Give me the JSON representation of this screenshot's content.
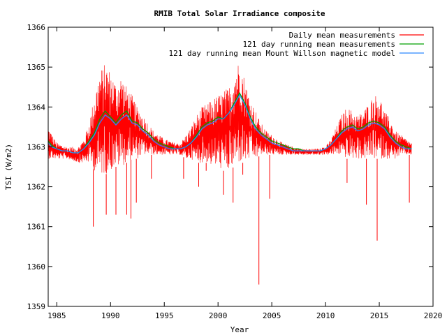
{
  "chart_data": {
    "type": "line",
    "title": "RMIB Total Solar Irradiance composite",
    "xlabel": "Year",
    "ylabel": "TSI (W/m2)",
    "xlim": [
      1984.2,
      2020
    ],
    "ylim": [
      1359,
      1366
    ],
    "x_ticks": [
      "1985",
      "1990",
      "1995",
      "2000",
      "2005",
      "2010",
      "2015",
      "2020"
    ],
    "y_ticks": [
      "1359",
      "1360",
      "1361",
      "1362",
      "1363",
      "1364",
      "1365",
      "1366"
    ],
    "grid": false,
    "legend_position": "top-right",
    "series": [
      {
        "name": "Daily mean measurements",
        "color": "#ff0000",
        "style": "noisy-envelope",
        "x": [
          1984.2,
          1985,
          1986,
          1987,
          1987.5,
          1988,
          1988.5,
          1989,
          1989.5,
          1990,
          1990.5,
          1991,
          1991.5,
          1992,
          1992.5,
          1993,
          1993.5,
          1994,
          1995,
          1996,
          1996.5,
          1997,
          1997.5,
          1998,
          1998.5,
          1999,
          1999.5,
          2000,
          2000.5,
          2001,
          2001.5,
          2002,
          2002.5,
          2003,
          2003.5,
          2004,
          2004.5,
          2005,
          2006,
          2007,
          2008,
          2009,
          2009.5,
          2010,
          2010.5,
          2011,
          2011.5,
          2012,
          2012.5,
          2013,
          2013.5,
          2014,
          2014.5,
          2015,
          2015.5,
          2016,
          2016.5,
          2017,
          2018
        ],
        "upper": [
          1363.5,
          1363.1,
          1363.0,
          1363.0,
          1363.2,
          1363.6,
          1364.3,
          1364.9,
          1365.1,
          1364.9,
          1364.6,
          1364.8,
          1364.5,
          1364.3,
          1364.0,
          1363.8,
          1363.6,
          1363.4,
          1363.2,
          1363.1,
          1363.1,
          1363.3,
          1363.5,
          1363.8,
          1364.0,
          1364.1,
          1364.2,
          1364.3,
          1364.4,
          1364.5,
          1364.9,
          1365.2,
          1364.7,
          1364.2,
          1363.9,
          1363.6,
          1363.4,
          1363.3,
          1363.1,
          1363.0,
          1362.95,
          1362.95,
          1363.0,
          1363.0,
          1363.2,
          1363.5,
          1363.8,
          1364.0,
          1363.9,
          1363.8,
          1363.9,
          1364.1,
          1364.3,
          1364.3,
          1363.9,
          1363.7,
          1363.4,
          1363.3,
          1363.1
        ],
        "lower": [
          1362.7,
          1362.7,
          1362.7,
          1362.6,
          1362.6,
          1362.6,
          1362.4,
          1362.3,
          1362.3,
          1362.4,
          1362.5,
          1362.5,
          1362.6,
          1362.7,
          1362.7,
          1362.8,
          1362.8,
          1362.8,
          1362.8,
          1362.8,
          1362.8,
          1362.7,
          1362.7,
          1362.6,
          1362.6,
          1362.6,
          1362.5,
          1362.5,
          1362.4,
          1362.4,
          1362.5,
          1362.6,
          1362.6,
          1362.7,
          1362.7,
          1362.8,
          1362.8,
          1362.8,
          1362.8,
          1362.8,
          1362.8,
          1362.8,
          1362.8,
          1362.8,
          1362.8,
          1362.8,
          1362.8,
          1362.7,
          1362.7,
          1362.7,
          1362.7,
          1362.7,
          1362.7,
          1362.7,
          1362.7,
          1362.7,
          1362.7,
          1362.8,
          1362.8
        ],
        "dips": [
          [
            1988.4,
            1361.0
          ],
          [
            1989.6,
            1361.3
          ],
          [
            1990.5,
            1361.3
          ],
          [
            1991.5,
            1361.3
          ],
          [
            1991.9,
            1361.2
          ],
          [
            1992.4,
            1361.6
          ],
          [
            1993.8,
            1362.2
          ],
          [
            1996.8,
            1362.2
          ],
          [
            1998.2,
            1362.0
          ],
          [
            1998.9,
            1362.4
          ],
          [
            2000.5,
            1361.8
          ],
          [
            2001.4,
            1361.6
          ],
          [
            2002.3,
            1362.3
          ],
          [
            2003.8,
            1359.55
          ],
          [
            2004.8,
            1361.7
          ],
          [
            2012.0,
            1362.1
          ],
          [
            2013.8,
            1361.55
          ],
          [
            2014.8,
            1360.65
          ],
          [
            2017.8,
            1361.6
          ]
        ]
      },
      {
        "name": "121 day running mean measurements",
        "color": "#00a000",
        "x": [
          1984.2,
          1984.5,
          1985,
          1985.5,
          1986,
          1986.5,
          1987,
          1987.5,
          1988,
          1988.5,
          1989,
          1989.5,
          1990,
          1990.5,
          1991,
          1991.5,
          1992,
          1992.5,
          1993,
          1993.5,
          1994,
          1994.5,
          1995,
          1995.5,
          1996,
          1996.5,
          1997,
          1997.5,
          1998,
          1998.5,
          1999,
          1999.5,
          2000,
          2000.5,
          2001,
          2001.5,
          2002,
          2002.5,
          2003,
          2003.5,
          2004,
          2004.5,
          2005,
          2005.5,
          2006,
          2006.5,
          2007,
          2007.5,
          2008,
          2008.5,
          2009,
          2009.5,
          2010,
          2010.5,
          2011,
          2011.5,
          2012,
          2012.5,
          2013,
          2013.5,
          2014,
          2014.5,
          2015,
          2015.5,
          2016,
          2016.5,
          2017,
          2017.5,
          2018
        ],
        "values": [
          1363.15,
          1363.05,
          1362.95,
          1362.9,
          1362.9,
          1362.85,
          1362.85,
          1362.95,
          1363.15,
          1363.35,
          1363.7,
          1363.9,
          1363.75,
          1363.6,
          1363.8,
          1363.9,
          1363.65,
          1363.6,
          1363.45,
          1363.35,
          1363.2,
          1363.1,
          1363.05,
          1363.0,
          1362.95,
          1362.95,
          1363.0,
          1363.1,
          1363.3,
          1363.5,
          1363.6,
          1363.65,
          1363.75,
          1363.7,
          1363.85,
          1364.1,
          1364.35,
          1364.1,
          1363.75,
          1363.5,
          1363.35,
          1363.25,
          1363.15,
          1363.1,
          1363.05,
          1363.0,
          1362.95,
          1362.95,
          1362.9,
          1362.9,
          1362.9,
          1362.9,
          1362.95,
          1363.05,
          1363.2,
          1363.4,
          1363.5,
          1363.55,
          1363.45,
          1363.5,
          1363.6,
          1363.65,
          1363.6,
          1363.5,
          1363.3,
          1363.15,
          1363.05,
          1363.0,
          1362.95
        ]
      },
      {
        "name": "121 day running mean Mount Willson magnetic model",
        "color": "#2a88ff",
        "x": [
          1984.2,
          1984.5,
          1985,
          1985.5,
          1986,
          1986.5,
          1987,
          1987.5,
          1988,
          1988.5,
          1989,
          1989.5,
          1990,
          1990.5,
          1991,
          1991.5,
          1992,
          1992.5,
          1993,
          1993.5,
          1994,
          1994.5,
          1995,
          1995.5,
          1996,
          1996.5,
          1997,
          1997.5,
          1998,
          1998.5,
          1999,
          1999.5,
          2000,
          2000.5,
          2001,
          2001.5,
          2002,
          2002.5,
          2003,
          2003.5,
          2004,
          2004.5,
          2005,
          2005.5,
          2006,
          2006.5,
          2007,
          2007.5,
          2008,
          2008.5,
          2009,
          2009.5,
          2010,
          2010.5,
          2011,
          2011.5,
          2012,
          2012.5,
          2013,
          2013.5,
          2014,
          2014.5,
          2015,
          2015.5,
          2016,
          2016.5,
          2017,
          2017.5,
          2018
        ],
        "values": [
          1363.1,
          1363.0,
          1362.95,
          1362.9,
          1362.9,
          1362.85,
          1362.85,
          1362.95,
          1363.1,
          1363.3,
          1363.6,
          1363.8,
          1363.7,
          1363.55,
          1363.7,
          1363.8,
          1363.6,
          1363.55,
          1363.4,
          1363.3,
          1363.15,
          1363.05,
          1363.0,
          1362.95,
          1362.95,
          1362.95,
          1363.0,
          1363.1,
          1363.25,
          1363.45,
          1363.55,
          1363.6,
          1363.7,
          1363.7,
          1363.85,
          1364.05,
          1364.3,
          1364.05,
          1363.7,
          1363.45,
          1363.3,
          1363.2,
          1363.1,
          1363.05,
          1363.0,
          1362.95,
          1362.9,
          1362.9,
          1362.9,
          1362.9,
          1362.9,
          1362.9,
          1362.95,
          1363.05,
          1363.2,
          1363.35,
          1363.45,
          1363.5,
          1363.4,
          1363.45,
          1363.55,
          1363.6,
          1363.55,
          1363.45,
          1363.25,
          1363.1,
          1363.0,
          1362.95,
          1362.95
        ]
      }
    ]
  }
}
